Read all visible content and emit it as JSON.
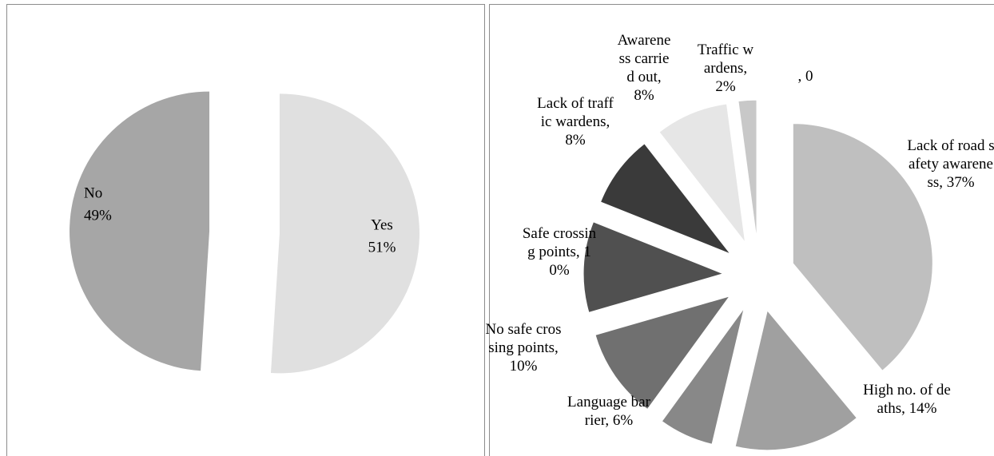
{
  "chart_data": [
    {
      "type": "pie",
      "categories": [
        "Yes",
        "No"
      ],
      "values": [
        51,
        49
      ],
      "value_labels": [
        "51%",
        "49%"
      ],
      "colors": [
        "#e0e0e0",
        "#a6a6a6"
      ]
    },
    {
      "type": "pie",
      "labels": [
        "Lack of road safety awareness, 37%",
        "High no. of deaths, 14%",
        "Language barrier, 6%",
        "No safe crossing points, 10%",
        "Safe crossing points, 10%",
        "Lack of traffic wardens, 8%",
        "Awareness carried out, 8%",
        "Traffic wardens, 2%",
        ", 0"
      ],
      "values": [
        37,
        14,
        6,
        10,
        10,
        8,
        8,
        2,
        0
      ],
      "colors": [
        "#bfbfbf",
        "#a0a0a0",
        "#888888",
        "#707070",
        "#505050",
        "#3a3a3a",
        "#e6e6e6",
        "#c8c8c8",
        "#dddddd"
      ]
    }
  ]
}
